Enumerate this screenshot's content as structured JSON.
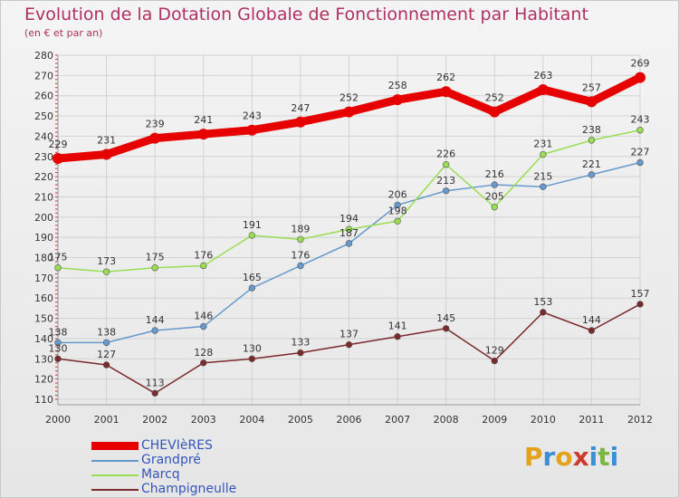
{
  "title": "Evolution de la Dotation Globale de Fonctionnement par Habitant",
  "subtitle": "(en € et par an)",
  "logo": {
    "letters": [
      "P",
      "r",
      "o",
      "x",
      "i",
      "t",
      "i"
    ],
    "colors": [
      "#e3a21a",
      "#3b8fd6",
      "#e3a21a",
      "#cc3b30",
      "#3b8fd6",
      "#7ab640",
      "#3b8fd6"
    ]
  },
  "chart_data": {
    "type": "line",
    "x": [
      "2000",
      "2001",
      "2002",
      "2003",
      "2004",
      "2005",
      "2006",
      "2007",
      "2008",
      "2009",
      "2010",
      "2011",
      "2012"
    ],
    "ylim": [
      110,
      280
    ],
    "yticks": [
      "110",
      "120",
      "130",
      "140",
      "150",
      "160",
      "170",
      "180",
      "190",
      "200",
      "210",
      "220",
      "230",
      "240",
      "250",
      "260",
      "270",
      "280"
    ],
    "grid": true,
    "legend_position": "bottom-left",
    "series": [
      {
        "name": "CHEVIèRES",
        "color": "#e60000",
        "values": [
          229,
          231,
          239,
          241,
          243,
          247,
          252,
          258,
          262,
          252,
          263,
          257,
          269
        ]
      },
      {
        "name": "Grandpré",
        "color": "#6699cc",
        "values": [
          138,
          138,
          144,
          146,
          165,
          176,
          187,
          206,
          213,
          216,
          215,
          221,
          227
        ]
      },
      {
        "name": "Marcq",
        "color": "#99dd55",
        "values": [
          175,
          173,
          175,
          176,
          191,
          189,
          194,
          198,
          226,
          205,
          231,
          238,
          243
        ]
      },
      {
        "name": "Champigneulle",
        "color": "#7a2a2a",
        "values": [
          130,
          127,
          113,
          128,
          130,
          133,
          137,
          141,
          145,
          129,
          153,
          144,
          157
        ]
      }
    ]
  }
}
